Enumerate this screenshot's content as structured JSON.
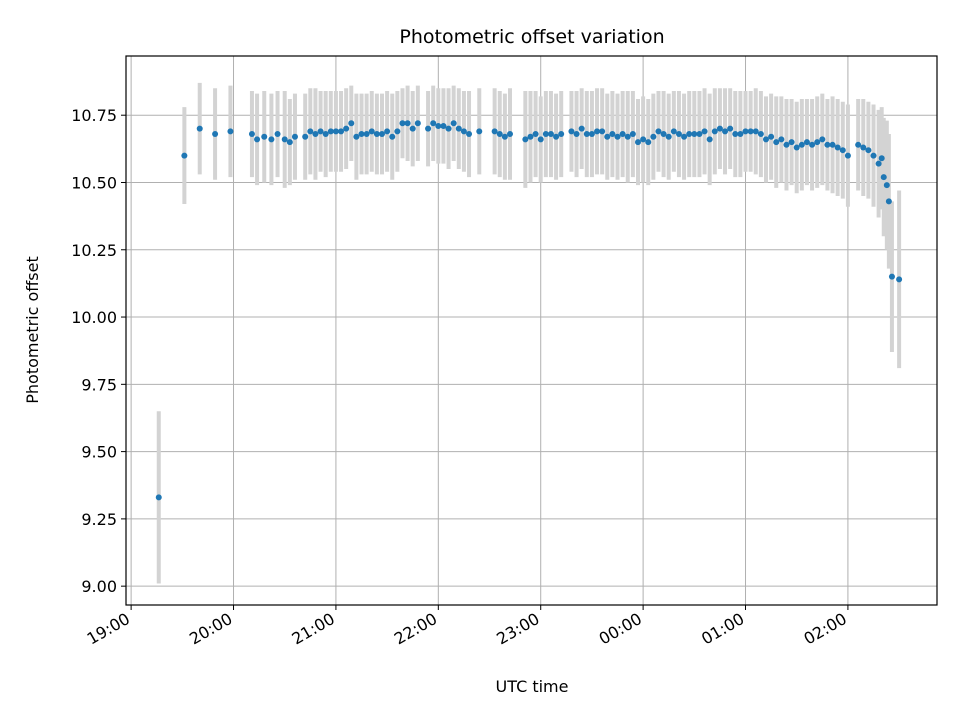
{
  "chart_data": {
    "type": "scatter",
    "title": "Photometric offset variation",
    "xlabel": "UTC time",
    "ylabel": "Photometric offset",
    "x_ticks": [
      "19:00",
      "20:00",
      "21:00",
      "22:00",
      "23:00",
      "00:00",
      "01:00",
      "02:00"
    ],
    "y_ticks": [
      "9.00",
      "9.25",
      "9.50",
      "9.75",
      "10.00",
      "10.25",
      "10.50",
      "10.75"
    ],
    "x_tick_hours": [
      19,
      20,
      21,
      22,
      23,
      24,
      25,
      26
    ],
    "y_tick_values": [
      9.0,
      9.25,
      9.5,
      9.75,
      10.0,
      10.25,
      10.5,
      10.75
    ],
    "xlim_hours": [
      18.95,
      26.87
    ],
    "ylim": [
      8.93,
      10.97
    ],
    "grid": true,
    "point_color": "#1f77b4",
    "errorbar_color": "#d3d3d3",
    "x_hours": [
      19.27,
      19.52,
      19.67,
      19.82,
      19.97,
      20.18,
      20.23,
      20.3,
      20.37,
      20.43,
      20.5,
      20.55,
      20.6,
      20.7,
      20.75,
      20.8,
      20.85,
      20.9,
      20.95,
      21.0,
      21.05,
      21.1,
      21.15,
      21.2,
      21.25,
      21.3,
      21.35,
      21.4,
      21.45,
      21.5,
      21.55,
      21.6,
      21.65,
      21.7,
      21.75,
      21.8,
      21.9,
      21.95,
      22.0,
      22.05,
      22.1,
      22.15,
      22.2,
      22.25,
      22.3,
      22.4,
      22.55,
      22.6,
      22.65,
      22.7,
      22.85,
      22.9,
      22.95,
      23.0,
      23.05,
      23.1,
      23.15,
      23.2,
      23.3,
      23.35,
      23.4,
      23.45,
      23.5,
      23.55,
      23.6,
      23.65,
      23.7,
      23.75,
      23.8,
      23.85,
      23.9,
      23.95,
      24.0,
      24.05,
      24.1,
      24.15,
      24.2,
      24.25,
      24.3,
      24.35,
      24.4,
      24.45,
      24.5,
      24.55,
      24.6,
      24.65,
      24.7,
      24.75,
      24.8,
      24.85,
      24.9,
      24.95,
      25.0,
      25.05,
      25.1,
      25.15,
      25.2,
      25.25,
      25.3,
      25.35,
      25.4,
      25.45,
      25.5,
      25.55,
      25.6,
      25.65,
      25.7,
      25.75,
      25.8,
      25.85,
      25.9,
      25.95,
      26.0,
      26.1,
      26.15,
      26.2,
      26.25,
      26.3,
      26.33,
      26.35,
      26.38,
      26.4,
      26.43,
      26.5
    ],
    "y_values": [
      9.33,
      10.6,
      10.7,
      10.68,
      10.69,
      10.68,
      10.66,
      10.67,
      10.66,
      10.68,
      10.66,
      10.65,
      10.67,
      10.67,
      10.69,
      10.68,
      10.69,
      10.68,
      10.69,
      10.69,
      10.69,
      10.7,
      10.72,
      10.67,
      10.68,
      10.68,
      10.69,
      10.68,
      10.68,
      10.69,
      10.67,
      10.69,
      10.72,
      10.72,
      10.7,
      10.72,
      10.7,
      10.72,
      10.71,
      10.71,
      10.7,
      10.72,
      10.7,
      10.69,
      10.68,
      10.69,
      10.69,
      10.68,
      10.67,
      10.68,
      10.66,
      10.67,
      10.68,
      10.66,
      10.68,
      10.68,
      10.67,
      10.68,
      10.69,
      10.68,
      10.7,
      10.68,
      10.68,
      10.69,
      10.69,
      10.67,
      10.68,
      10.67,
      10.68,
      10.67,
      10.68,
      10.65,
      10.66,
      10.65,
      10.67,
      10.69,
      10.68,
      10.67,
      10.69,
      10.68,
      10.67,
      10.68,
      10.68,
      10.68,
      10.69,
      10.66,
      10.69,
      10.7,
      10.69,
      10.7,
      10.68,
      10.68,
      10.69,
      10.69,
      10.69,
      10.68,
      10.66,
      10.67,
      10.65,
      10.66,
      10.64,
      10.65,
      10.63,
      10.64,
      10.65,
      10.64,
      10.65,
      10.66,
      10.64,
      10.64,
      10.63,
      10.62,
      10.6,
      10.64,
      10.63,
      10.62,
      10.6,
      10.57,
      10.59,
      10.52,
      10.49,
      10.43,
      10.15,
      10.14
    ],
    "errorbar_halfwidth": [
      0.32,
      0.18,
      0.17,
      0.17,
      0.17,
      0.16,
      0.17,
      0.17,
      0.17,
      0.16,
      0.18,
      0.16,
      0.16,
      0.16,
      0.16,
      0.17,
      0.15,
      0.16,
      0.15,
      0.15,
      0.15,
      0.15,
      0.14,
      0.16,
      0.15,
      0.15,
      0.15,
      0.15,
      0.15,
      0.15,
      0.16,
      0.15,
      0.13,
      0.14,
      0.14,
      0.14,
      0.14,
      0.14,
      0.14,
      0.14,
      0.15,
      0.14,
      0.15,
      0.15,
      0.16,
      0.16,
      0.16,
      0.16,
      0.16,
      0.17,
      0.18,
      0.17,
      0.16,
      0.16,
      0.16,
      0.16,
      0.16,
      0.16,
      0.15,
      0.16,
      0.15,
      0.16,
      0.16,
      0.16,
      0.16,
      0.16,
      0.16,
      0.16,
      0.16,
      0.17,
      0.16,
      0.16,
      0.16,
      0.16,
      0.16,
      0.15,
      0.16,
      0.16,
      0.15,
      0.16,
      0.16,
      0.16,
      0.16,
      0.16,
      0.16,
      0.17,
      0.16,
      0.15,
      0.16,
      0.15,
      0.16,
      0.16,
      0.15,
      0.15,
      0.16,
      0.16,
      0.16,
      0.16,
      0.17,
      0.16,
      0.17,
      0.16,
      0.17,
      0.17,
      0.16,
      0.17,
      0.17,
      0.17,
      0.17,
      0.18,
      0.18,
      0.18,
      0.19,
      0.17,
      0.18,
      0.18,
      0.19,
      0.2,
      0.19,
      0.22,
      0.24,
      0.25,
      0.28,
      0.33
    ]
  }
}
